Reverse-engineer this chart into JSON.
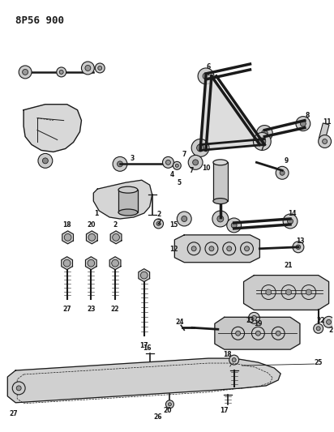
{
  "title": "8P56 900",
  "bg_color": "#ffffff",
  "line_color": "#1a1a1a",
  "fig_width": 4.12,
  "fig_height": 5.33,
  "dpi": 100
}
